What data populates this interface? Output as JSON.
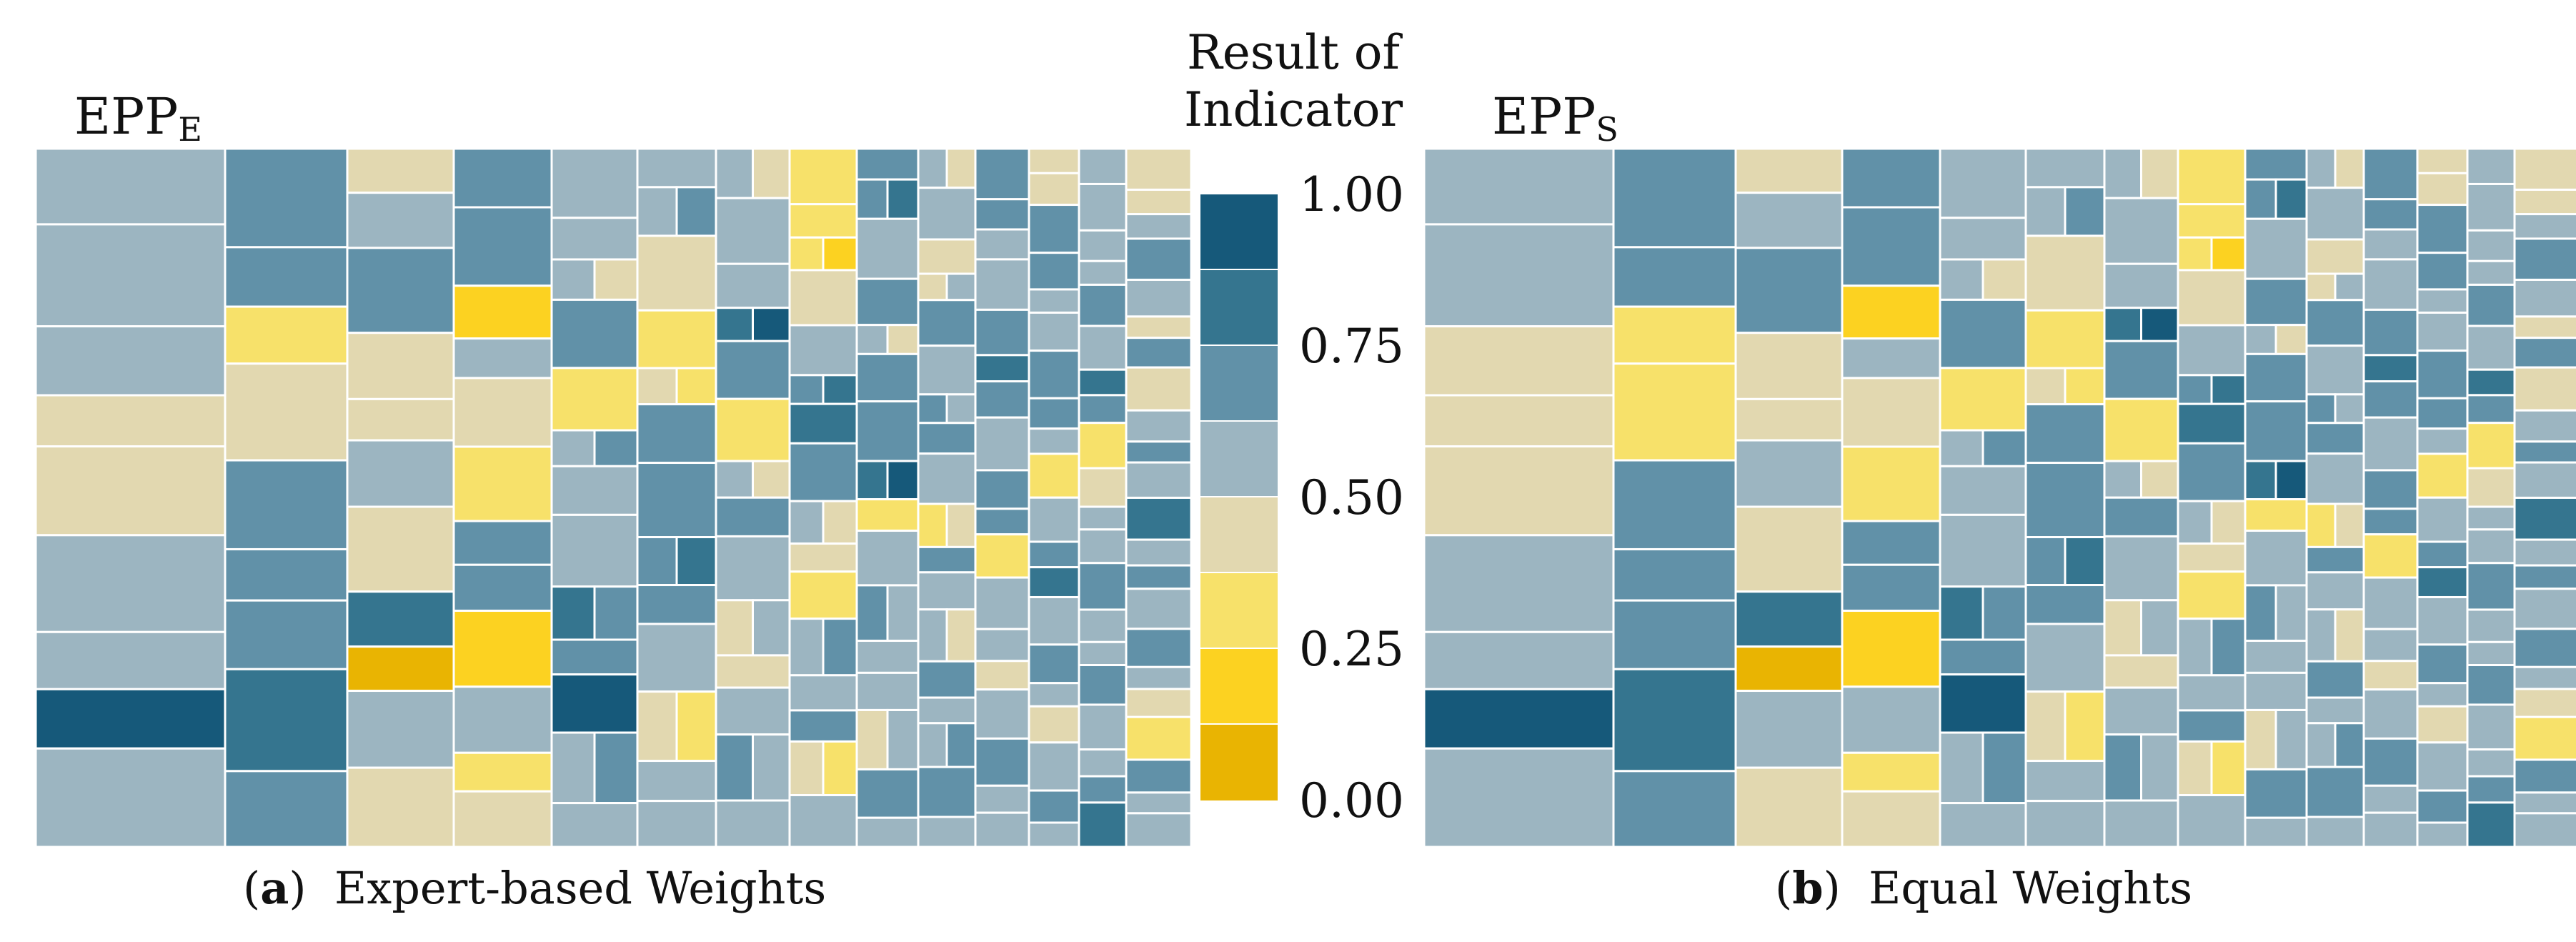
{
  "chart_data": {
    "type": "treemap",
    "legend": {
      "title_line1": "Result of",
      "title_line2": "Indicator",
      "ticks": [
        "1.00",
        "0.75",
        "0.50",
        "0.25",
        "0.00"
      ],
      "bands": [
        {
          "color": "#16597a"
        },
        {
          "color": "#35758f"
        },
        {
          "color": "#6191a8"
        },
        {
          "color": "#9cb5c1"
        },
        {
          "color": "#e2d8b0"
        },
        {
          "color": "#f7e16a"
        },
        {
          "color": "#fcd221"
        },
        {
          "color": "#e9b402"
        }
      ]
    },
    "panels": [
      {
        "id": "a",
        "title_main": "EPP",
        "title_sub": "E",
        "caption_letter": "a",
        "caption_text": "Expert-based Weights",
        "columns": [
          [
            4,
            4,
            4,
            3,
            3,
            4,
            4,
            7,
            4
          ],
          [
            5,
            5,
            2,
            3,
            5,
            5,
            5,
            6,
            5
          ],
          [
            3,
            4,
            5,
            3,
            3,
            4,
            3,
            6,
            0,
            4,
            3
          ],
          [
            5,
            5,
            1,
            4,
            3,
            2,
            5,
            5,
            1,
            4,
            2,
            3
          ],
          [
            4,
            4,
            4,
            5,
            2,
            4,
            4,
            4,
            6,
            5,
            7,
            4,
            4
          ],
          [
            4,
            4,
            3,
            2,
            3,
            5,
            5,
            5,
            5,
            4,
            3,
            4,
            4
          ],
          [
            4,
            4,
            4,
            6,
            5,
            2,
            4,
            5,
            4,
            3,
            3,
            4,
            5,
            4
          ],
          [
            2,
            2,
            2,
            3,
            4,
            5,
            6,
            5,
            4,
            3,
            2,
            4,
            4,
            5,
            3,
            4
          ],
          [
            5,
            5,
            4,
            5,
            4,
            5,
            5,
            6,
            2,
            4,
            5,
            4,
            4,
            3,
            5,
            4
          ],
          [
            4,
            4,
            3,
            3,
            5,
            4,
            5,
            5,
            4,
            2,
            5,
            4,
            4,
            5,
            4,
            4,
            5,
            4
          ],
          [
            5,
            5,
            4,
            4,
            5,
            6,
            5,
            4,
            5,
            5,
            2,
            4,
            4,
            3,
            4,
            5,
            4,
            4
          ],
          [
            3,
            3,
            5,
            5,
            4,
            4,
            5,
            5,
            4,
            2,
            4,
            5,
            6,
            4,
            5,
            4,
            3,
            4,
            5,
            4
          ],
          [
            4,
            4,
            4,
            4,
            5,
            4,
            6,
            5,
            2,
            3,
            4,
            4,
            5,
            4,
            4,
            5,
            4,
            4,
            5,
            6
          ],
          [
            3,
            3,
            4,
            5,
            4,
            3,
            5,
            3,
            4,
            5,
            4,
            6,
            4,
            5,
            4,
            5,
            4,
            3,
            2,
            5,
            4,
            4
          ]
        ]
      },
      {
        "id": "b",
        "title_main": "EPP",
        "title_sub": "S",
        "caption_letter": "b",
        "caption_text": "Equal Weights",
        "columns": [
          [
            4,
            4,
            3,
            3,
            3,
            4,
            4,
            7,
            4
          ],
          [
            5,
            5,
            2,
            2,
            5,
            5,
            5,
            6,
            5
          ],
          [
            3,
            4,
            5,
            3,
            3,
            4,
            3,
            6,
            0,
            4,
            3
          ],
          [
            5,
            5,
            1,
            4,
            3,
            2,
            5,
            5,
            1,
            4,
            2,
            3
          ],
          [
            4,
            4,
            4,
            5,
            2,
            4,
            4,
            4,
            6,
            5,
            7,
            4,
            4
          ],
          [
            4,
            4,
            3,
            2,
            3,
            5,
            5,
            5,
            5,
            4,
            3,
            4,
            4
          ],
          [
            4,
            4,
            4,
            6,
            5,
            2,
            4,
            5,
            4,
            3,
            3,
            4,
            5,
            4
          ],
          [
            2,
            2,
            2,
            3,
            4,
            5,
            6,
            5,
            4,
            3,
            2,
            4,
            4,
            5,
            3,
            4
          ],
          [
            5,
            5,
            4,
            5,
            4,
            5,
            5,
            6,
            2,
            4,
            5,
            4,
            4,
            3,
            5,
            4
          ],
          [
            4,
            4,
            3,
            3,
            5,
            4,
            5,
            5,
            4,
            2,
            5,
            4,
            4,
            5,
            4,
            4,
            5,
            4
          ],
          [
            5,
            5,
            4,
            4,
            5,
            6,
            5,
            4,
            5,
            5,
            2,
            4,
            4,
            3,
            4,
            5,
            4,
            4
          ],
          [
            3,
            3,
            5,
            5,
            4,
            4,
            5,
            5,
            4,
            2,
            4,
            5,
            6,
            4,
            5,
            4,
            3,
            4,
            5,
            4
          ],
          [
            4,
            4,
            4,
            4,
            5,
            4,
            6,
            5,
            2,
            3,
            4,
            4,
            5,
            4,
            4,
            5,
            4,
            4,
            5,
            6
          ],
          [
            3,
            3,
            4,
            5,
            4,
            3,
            5,
            3,
            4,
            5,
            4,
            6,
            4,
            5,
            4,
            5,
            4,
            3,
            2,
            5,
            4,
            4
          ]
        ]
      }
    ]
  }
}
